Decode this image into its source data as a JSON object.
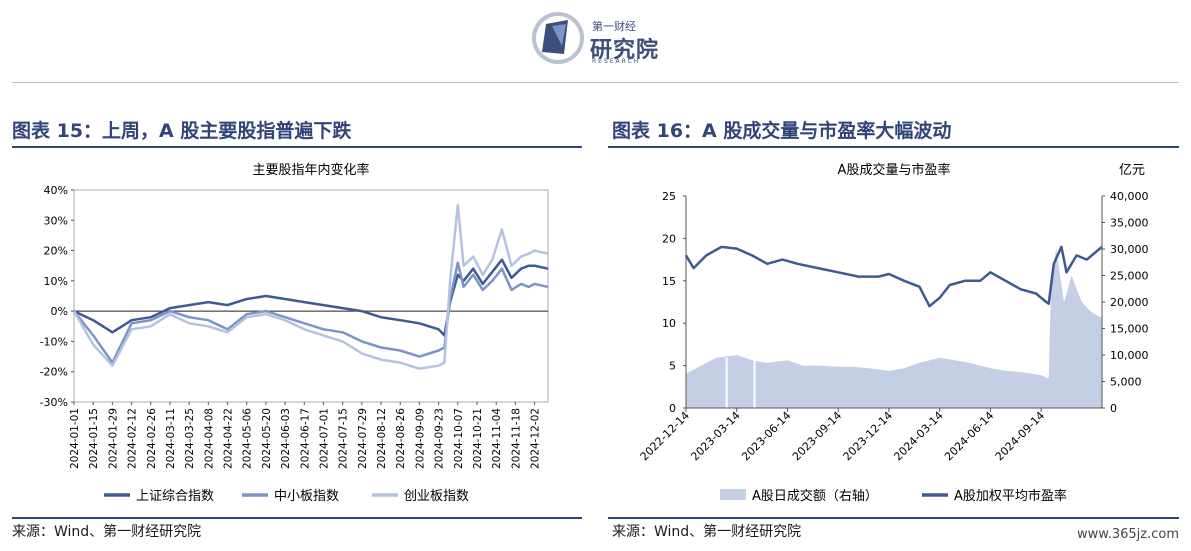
{
  "logo": {
    "top_text": "第一财经",
    "main_text": "研究院",
    "sub_text": "RESEARCH"
  },
  "left": {
    "section_title": "图表 15：上周，A 股主要股指普遍下跌",
    "source": "来源：Wind、第一财经研究院"
  },
  "right": {
    "section_title": "图表 16：A 股成交量与市盈率大幅波动",
    "source": "来源：Wind、第一财经研究院"
  },
  "watermark": "www.365jz.com",
  "colors": {
    "navy": "#2f4478",
    "dark": "#3e5a93",
    "mid": "#7b94c8",
    "light": "#b4c2e0",
    "volume": "#c4cfe6"
  },
  "chart_data": [
    {
      "type": "line",
      "title": "主要股指年内变化率",
      "ylim": [
        -30,
        40
      ],
      "yticks": [
        "40%",
        "30%",
        "20%",
        "10%",
        "0%",
        "-10%",
        "-20%",
        "-30%"
      ],
      "xticks": [
        "2024-01-01",
        "2024-01-15",
        "2024-01-29",
        "2024-02-12",
        "2024-02-26",
        "2024-03-11",
        "2024-03-25",
        "2024-04-08",
        "2024-04-22",
        "2024-05-06",
        "2024-05-20",
        "2024-06-03",
        "2024-06-17",
        "2024-07-01",
        "2024-07-15",
        "2024-07-29",
        "2024-08-12",
        "2024-08-26",
        "2024-09-09",
        "2024-09-23",
        "2024-10-07",
        "2024-10-21",
        "2024-11-04",
        "2024-11-18",
        "2024-12-02"
      ],
      "legend_position": "bottom",
      "series": [
        {
          "name": "上证综合指数",
          "color": "#3e5a93",
          "points": [
            [
              0,
              0
            ],
            [
              1,
              -3
            ],
            [
              2,
              -7
            ],
            [
              3,
              -3
            ],
            [
              4,
              -2
            ],
            [
              5,
              1
            ],
            [
              6,
              2
            ],
            [
              7,
              3
            ],
            [
              8,
              2
            ],
            [
              9,
              4
            ],
            [
              10,
              5
            ],
            [
              11,
              4
            ],
            [
              12,
              3
            ],
            [
              13,
              2
            ],
            [
              14,
              1
            ],
            [
              15,
              0
            ],
            [
              16,
              -2
            ],
            [
              17,
              -3
            ],
            [
              18,
              -4
            ],
            [
              19,
              -6
            ],
            [
              19.3,
              -8
            ],
            [
              19.6,
              3
            ],
            [
              20,
              12
            ],
            [
              20.3,
              10
            ],
            [
              20.8,
              14
            ],
            [
              21.3,
              9
            ],
            [
              21.8,
              13
            ],
            [
              22.3,
              17
            ],
            [
              22.8,
              11
            ],
            [
              23.3,
              14
            ],
            [
              23.7,
              15
            ],
            [
              24,
              15
            ],
            [
              24.7,
              14
            ]
          ]
        },
        {
          "name": "中小板指数",
          "color": "#7b94c8",
          "points": [
            [
              0,
              0
            ],
            [
              1,
              -8
            ],
            [
              2,
              -17
            ],
            [
              3,
              -4
            ],
            [
              4,
              -3
            ],
            [
              5,
              0
            ],
            [
              6,
              -2
            ],
            [
              7,
              -3
            ],
            [
              8,
              -6
            ],
            [
              9,
              -1
            ],
            [
              10,
              0
            ],
            [
              11,
              -2
            ],
            [
              12,
              -4
            ],
            [
              13,
              -6
            ],
            [
              14,
              -7
            ],
            [
              15,
              -10
            ],
            [
              16,
              -12
            ],
            [
              17,
              -13
            ],
            [
              18,
              -15
            ],
            [
              19,
              -13
            ],
            [
              19.3,
              -12
            ],
            [
              19.6,
              4
            ],
            [
              20,
              16
            ],
            [
              20.3,
              8
            ],
            [
              20.8,
              12
            ],
            [
              21.3,
              7
            ],
            [
              21.8,
              10
            ],
            [
              22.3,
              14
            ],
            [
              22.8,
              7
            ],
            [
              23.3,
              9
            ],
            [
              23.7,
              8
            ],
            [
              24,
              9
            ],
            [
              24.7,
              8
            ]
          ]
        },
        {
          "name": "创业板指数",
          "color": "#b4c2e0",
          "points": [
            [
              0,
              0
            ],
            [
              1,
              -11
            ],
            [
              2,
              -18
            ],
            [
              3,
              -6
            ],
            [
              4,
              -5
            ],
            [
              5,
              -1
            ],
            [
              6,
              -4
            ],
            [
              7,
              -5
            ],
            [
              8,
              -7
            ],
            [
              9,
              -2
            ],
            [
              10,
              -1
            ],
            [
              11,
              -3
            ],
            [
              12,
              -6
            ],
            [
              13,
              -8
            ],
            [
              14,
              -10
            ],
            [
              15,
              -14
            ],
            [
              16,
              -16
            ],
            [
              17,
              -17
            ],
            [
              18,
              -19
            ],
            [
              19,
              -18
            ],
            [
              19.3,
              -17
            ],
            [
              19.6,
              10
            ],
            [
              20,
              35
            ],
            [
              20.3,
              15
            ],
            [
              20.8,
              18
            ],
            [
              21.3,
              12
            ],
            [
              21.8,
              17
            ],
            [
              22.3,
              27
            ],
            [
              22.8,
              15
            ],
            [
              23.3,
              18
            ],
            [
              23.7,
              19
            ],
            [
              24,
              20
            ],
            [
              24.7,
              19
            ]
          ]
        }
      ]
    },
    {
      "type": "line",
      "title": "A股成交量与市盈率",
      "right_axis_unit": "亿元",
      "ylim_left": [
        0,
        25
      ],
      "ylim_right": [
        0,
        40000
      ],
      "yticks_left": [
        "25",
        "20",
        "15",
        "10",
        "5",
        "0"
      ],
      "yticks_right": [
        "40,000",
        "35,000",
        "30,000",
        "25,000",
        "20,000",
        "15,000",
        "10,000",
        "5,000",
        "0"
      ],
      "xticks": [
        "2022-12-14",
        "2023-03-14",
        "2023-06-14",
        "2023-09-14",
        "2023-12-14",
        "2024-03-14",
        "2024-06-14",
        "2024-09-14"
      ],
      "legend_position": "bottom",
      "series": [
        {
          "name": "A股日成交额（右轴）",
          "type": "area",
          "color": "#c4cfe6",
          "axis": "right",
          "points": [
            [
              0,
              6500
            ],
            [
              0.3,
              8000
            ],
            [
              0.6,
              9500
            ],
            [
              1,
              10000
            ],
            [
              1.3,
              9000
            ],
            [
              1.6,
              8500
            ],
            [
              2,
              9000
            ],
            [
              2.3,
              8000
            ],
            [
              2.6,
              8000
            ],
            [
              3,
              7800
            ],
            [
              3.3,
              7800
            ],
            [
              3.6,
              7500
            ],
            [
              4,
              7000
            ],
            [
              4.3,
              7500
            ],
            [
              4.6,
              8500
            ],
            [
              5,
              9500
            ],
            [
              5.3,
              9000
            ],
            [
              5.6,
              8500
            ],
            [
              6,
              7500
            ],
            [
              6.3,
              7000
            ],
            [
              6.6,
              6800
            ],
            [
              7,
              6200
            ],
            [
              7.15,
              5500
            ],
            [
              7.2,
              25000
            ],
            [
              7.3,
              30000
            ],
            [
              7.45,
              20000
            ],
            [
              7.6,
              25000
            ],
            [
              7.8,
              20000
            ],
            [
              8,
              18000
            ],
            [
              8.2,
              17000
            ]
          ]
        },
        {
          "name": "A股加权平均市盈率",
          "type": "line",
          "color": "#3e5a93",
          "axis": "left",
          "points": [
            [
              0,
              18
            ],
            [
              0.15,
              16.5
            ],
            [
              0.4,
              18
            ],
            [
              0.7,
              19
            ],
            [
              1,
              18.8
            ],
            [
              1.3,
              18
            ],
            [
              1.6,
              17
            ],
            [
              1.9,
              17.5
            ],
            [
              2.2,
              17
            ],
            [
              2.6,
              16.5
            ],
            [
              3,
              16
            ],
            [
              3.4,
              15.5
            ],
            [
              3.8,
              15.5
            ],
            [
              4,
              15.8
            ],
            [
              4.3,
              15
            ],
            [
              4.6,
              14.3
            ],
            [
              4.8,
              12
            ],
            [
              5,
              13
            ],
            [
              5.2,
              14.5
            ],
            [
              5.5,
              15
            ],
            [
              5.8,
              15
            ],
            [
              6,
              16
            ],
            [
              6.3,
              15
            ],
            [
              6.6,
              14
            ],
            [
              6.9,
              13.5
            ],
            [
              7.1,
              12.5
            ],
            [
              7.15,
              12.3
            ],
            [
              7.25,
              17
            ],
            [
              7.4,
              19
            ],
            [
              7.5,
              16
            ],
            [
              7.7,
              18
            ],
            [
              7.9,
              17.5
            ],
            [
              8.1,
              18.5
            ],
            [
              8.2,
              19
            ]
          ]
        }
      ]
    }
  ]
}
